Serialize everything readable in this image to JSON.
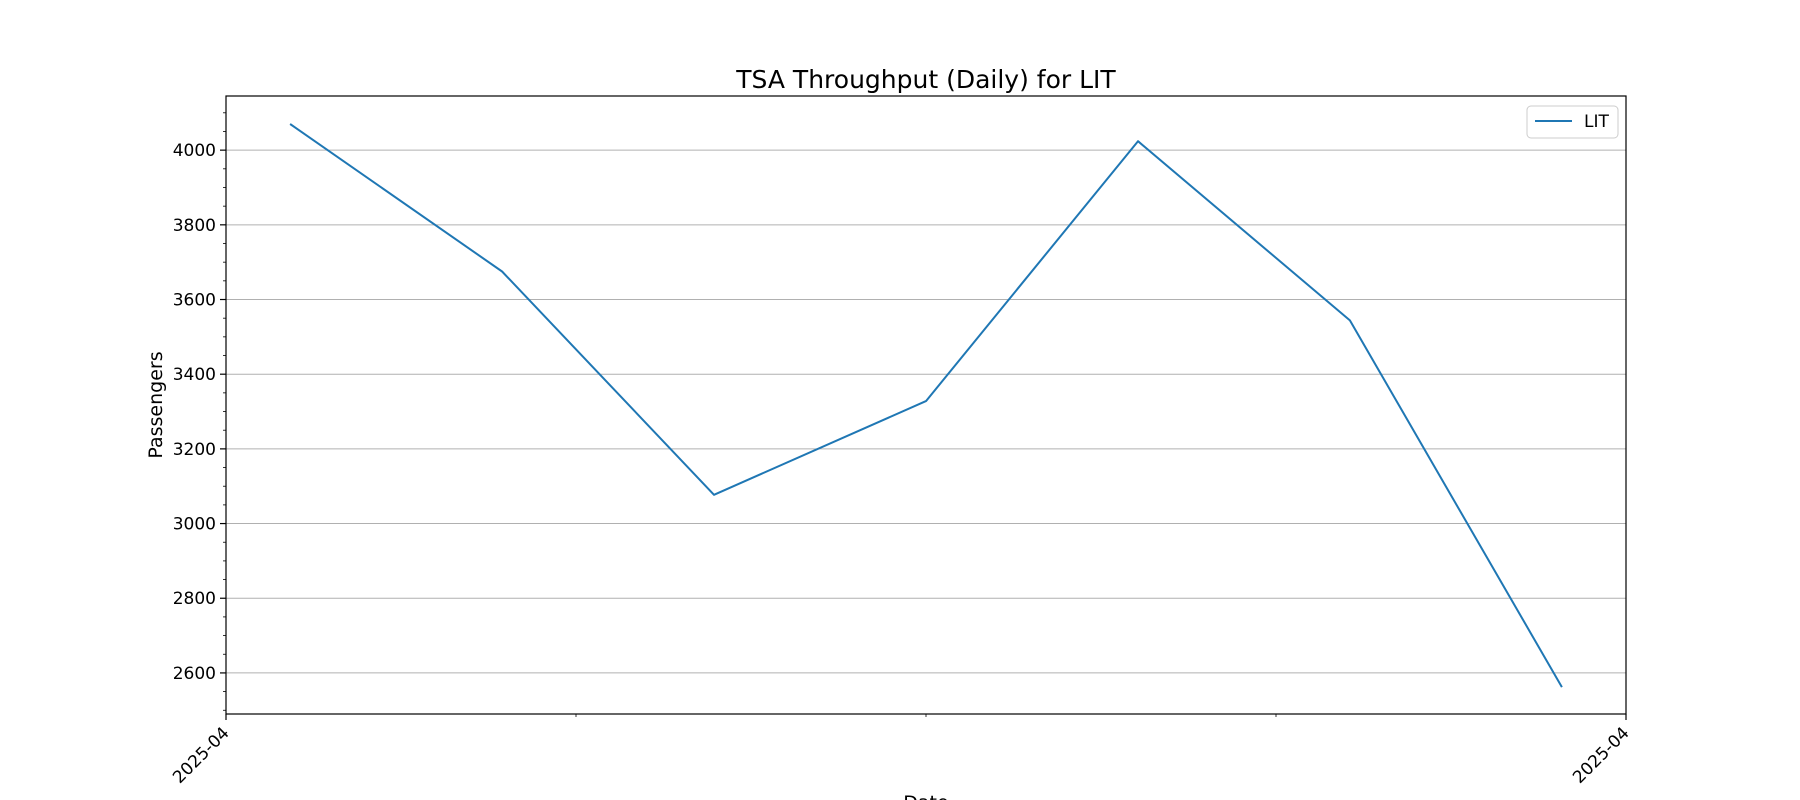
{
  "chart_data": {
    "type": "line",
    "title": "TSA Throughput (Daily) for LIT",
    "xlabel": "Date",
    "ylabel": "Passengers",
    "x_tick_labels": [
      "2025-04",
      "2025-04"
    ],
    "y_ticks": [
      2600,
      2800,
      3000,
      3200,
      3400,
      3600,
      3800,
      4000
    ],
    "ylim": [
      2490,
      4145
    ],
    "grid": "horizontal",
    "legend_position": "top-right",
    "series": [
      {
        "name": "LIT",
        "color": "#1f77b4",
        "values": [
          4070,
          3675,
          3077,
          3328,
          4024,
          3544,
          2562
        ]
      }
    ]
  }
}
